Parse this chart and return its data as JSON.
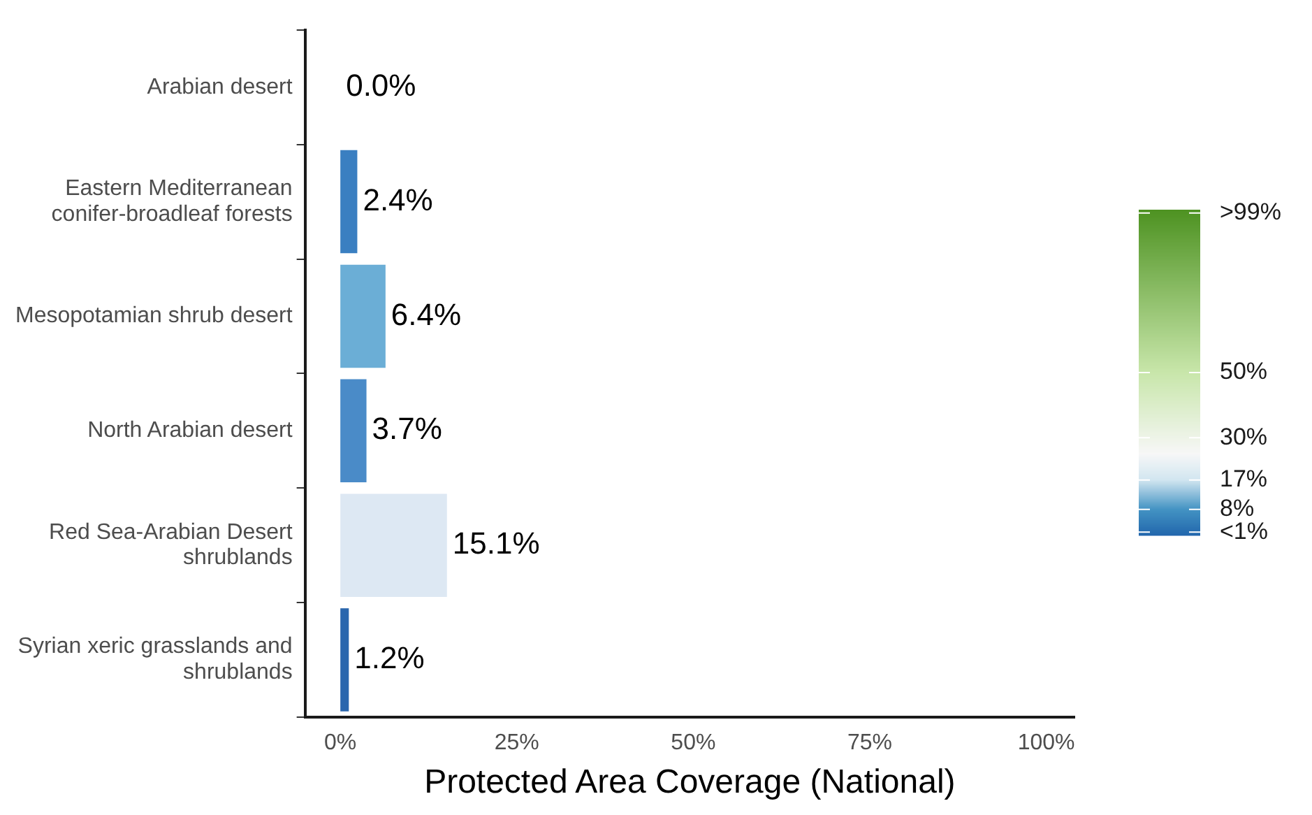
{
  "chart_data": {
    "type": "bar",
    "orientation": "horizontal",
    "categories": [
      "Arabian desert",
      "Eastern Mediterranean\nconifer-broadleaf forests",
      "Mesopotamian shrub desert",
      "North Arabian desert",
      "Red Sea-Arabian Desert\nshrublands",
      "Syrian xeric grasslands and\nshrublands"
    ],
    "values": [
      0.0,
      2.4,
      6.4,
      3.7,
      15.1,
      1.2
    ],
    "colors": [
      "#2166ac",
      "#3a7fc1",
      "#6baed6",
      "#4a8bc8",
      "#dde8f3",
      "#2a66ad"
    ],
    "value_labels": [
      "0.0%",
      "2.4%",
      "6.4%",
      "3.7%",
      "15.1%",
      "1.2%"
    ],
    "xlabel": "Protected Area Coverage (National)",
    "xlim": [
      -5,
      104
    ],
    "xticks": [
      {
        "value": 0,
        "label": "0%"
      },
      {
        "value": 25,
        "label": "25%"
      },
      {
        "value": 50,
        "label": "50%"
      },
      {
        "value": 75,
        "label": "75%"
      },
      {
        "value": 100,
        "label": "100%"
      }
    ],
    "clim": [
      0,
      100
    ],
    "cticks": [
      {
        "value": 1,
        "label": "<1%"
      },
      {
        "value": 8,
        "label": "8%"
      },
      {
        "value": 17,
        "label": "17%"
      },
      {
        "value": 30,
        "label": "30%"
      },
      {
        "value": 50,
        "label": "50%"
      },
      {
        "value": 99,
        "label": ">99%"
      }
    ],
    "grid": false,
    "legend": false
  }
}
